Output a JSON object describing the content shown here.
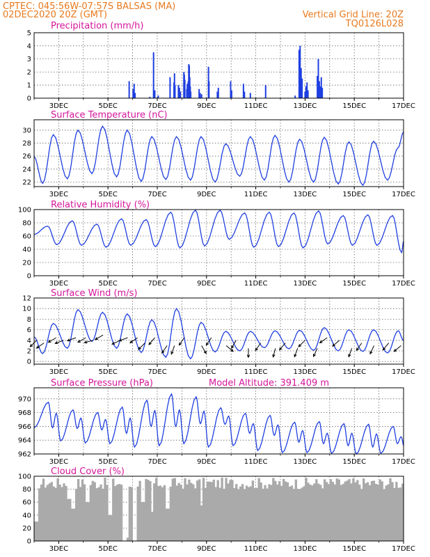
{
  "header": {
    "left_line1": "CPTEC:   045:56W-07:57S  BALSAS (MA)",
    "left_line2": "02DEC2020 20Z (GMT)",
    "right_line1": "Vertical Grid Line: 20Z",
    "right_line2": "TQ0126L028"
  },
  "colors": {
    "header": "#e87a1e",
    "titles": "#d4169a",
    "series": "#1f3fe0",
    "cloud": "#aaaaaa"
  },
  "chart_data": [
    {
      "id": "precip",
      "type": "bar",
      "title": "Precipitation (mm/h)",
      "unit_interval_hours": 1,
      "x_start": "02DEC2020 20Z",
      "x_end": "17DEC2020 20Z",
      "x_ticks": [
        "3DEC",
        "5DEC",
        "7DEC",
        "9DEC",
        "11DEC",
        "13DEC",
        "15DEC",
        "17DEC"
      ],
      "ylim": [
        0,
        5
      ],
      "y_ticks": [
        0,
        1,
        2,
        3,
        4,
        5
      ],
      "events": [
        {
          "day": 3.86,
          "value": 1.3
        },
        {
          "day": 4.02,
          "value": 0.7
        },
        {
          "day": 4.06,
          "value": 1.1
        },
        {
          "day": 4.1,
          "value": 0.4
        },
        {
          "day": 4.7,
          "value": 0.1
        },
        {
          "day": 4.85,
          "value": 3.5
        },
        {
          "day": 4.9,
          "value": 0.6
        },
        {
          "day": 5.04,
          "value": 0.2
        },
        {
          "day": 5.52,
          "value": 1.6
        },
        {
          "day": 5.68,
          "value": 1.2
        },
        {
          "day": 5.7,
          "value": 1.9
        },
        {
          "day": 5.72,
          "value": 1.0
        },
        {
          "day": 5.86,
          "value": 1.0
        },
        {
          "day": 5.9,
          "value": 0.8
        },
        {
          "day": 5.94,
          "value": 0.5
        },
        {
          "day": 6.08,
          "value": 2.0
        },
        {
          "day": 6.1,
          "value": 1.8
        },
        {
          "day": 6.12,
          "value": 1.4
        },
        {
          "day": 6.2,
          "value": 0.7
        },
        {
          "day": 6.22,
          "value": 1.1
        },
        {
          "day": 6.24,
          "value": 0.9
        },
        {
          "day": 6.26,
          "value": 1.3
        },
        {
          "day": 6.28,
          "value": 2.6
        },
        {
          "day": 6.3,
          "value": 2.5
        },
        {
          "day": 6.32,
          "value": 1.6
        },
        {
          "day": 6.34,
          "value": 0.9
        },
        {
          "day": 6.36,
          "value": 0.5
        },
        {
          "day": 6.7,
          "value": 0.7
        },
        {
          "day": 6.74,
          "value": 0.4
        },
        {
          "day": 6.8,
          "value": 0.3
        },
        {
          "day": 7.08,
          "value": 2.4
        },
        {
          "day": 7.1,
          "value": 1.3
        },
        {
          "day": 7.44,
          "value": 0.5
        },
        {
          "day": 7.48,
          "value": 0.8
        },
        {
          "day": 7.98,
          "value": 1.3
        },
        {
          "day": 8.02,
          "value": 0.6
        },
        {
          "day": 8.5,
          "value": 1.1
        },
        {
          "day": 8.54,
          "value": 0.5
        },
        {
          "day": 8.78,
          "value": 0.4
        },
        {
          "day": 9.4,
          "value": 1.0
        },
        {
          "day": 10.6,
          "value": 0.2
        },
        {
          "day": 10.76,
          "value": 3.7
        },
        {
          "day": 10.8,
          "value": 4.0
        },
        {
          "day": 10.84,
          "value": 2.3
        },
        {
          "day": 10.88,
          "value": 1.5
        },
        {
          "day": 11.0,
          "value": 0.5
        },
        {
          "day": 11.04,
          "value": 0.9
        },
        {
          "day": 11.08,
          "value": 1.2
        },
        {
          "day": 11.12,
          "value": 0.6
        },
        {
          "day": 11.5,
          "value": 1.7
        },
        {
          "day": 11.54,
          "value": 3.0
        },
        {
          "day": 11.58,
          "value": 1.3
        },
        {
          "day": 11.62,
          "value": 0.9
        },
        {
          "day": 11.66,
          "value": 1.6
        },
        {
          "day": 11.7,
          "value": 0.8
        }
      ]
    },
    {
      "id": "temp",
      "type": "line",
      "title": "Surface Temperature (nC)",
      "ylim": [
        21.3,
        31.6
      ],
      "y_ticks": [
        22,
        24,
        26,
        28,
        30,
        32
      ],
      "daily_min": [
        21.8,
        22.5,
        23.3,
        22.8,
        22.1,
        22.4,
        22.3,
        22.0,
        22.9,
        22.3,
        22.0,
        22.0,
        21.7,
        21.5,
        22.3
      ],
      "daily_max": [
        29.3,
        30.0,
        30.6,
        30.0,
        29.0,
        29.0,
        29.0,
        27.9,
        29.0,
        29.2,
        28.6,
        28.9,
        28.2,
        28.3,
        27.3
      ],
      "end_value": 29.7
    },
    {
      "id": "rh",
      "type": "line",
      "title": "Relative Humidity (%)",
      "ylim": [
        0,
        100
      ],
      "y_ticks": [
        0,
        20,
        40,
        60,
        80,
        100
      ],
      "daily_min": [
        47,
        46,
        43,
        46,
        44,
        42,
        45,
        55,
        43,
        44,
        42,
        48,
        46,
        46,
        35
      ],
      "daily_max": [
        75,
        83,
        78,
        86,
        85,
        96,
        99,
        99,
        95,
        96,
        95,
        98,
        91,
        92,
        91
      ],
      "end_value": 52
    },
    {
      "id": "wind",
      "type": "line",
      "title": "Surface Wind (m/s)",
      "ylim": [
        -0.5,
        12
      ],
      "y_ticks": [
        0,
        2,
        4,
        6,
        8,
        10,
        12
      ],
      "daily_min": [
        1.5,
        2.5,
        3.8,
        2.5,
        1.7,
        0.8,
        0.5,
        1.8,
        2.0,
        2.6,
        2.4,
        2.1,
        2.0,
        1.9,
        1.6
      ],
      "daily_max": [
        7.2,
        9.8,
        9.3,
        9.0,
        7.9,
        10.0,
        7.4,
        5.7,
        5.7,
        5.8,
        5.9,
        6.4,
        6.0,
        6.0,
        5.8
      ],
      "end_value": 4.0,
      "arrows": [
        {
          "day": 0.1,
          "speed": 4.0,
          "dir_deg": 225
        },
        {
          "day": 0.4,
          "speed": 3.5,
          "dir_deg": 235
        },
        {
          "day": 0.9,
          "speed": 4.5,
          "dir_deg": 240
        },
        {
          "day": 1.2,
          "speed": 4.0,
          "dir_deg": 250
        },
        {
          "day": 1.7,
          "speed": 4.5,
          "dir_deg": 250
        },
        {
          "day": 2.1,
          "speed": 4.5,
          "dir_deg": 240
        },
        {
          "day": 2.4,
          "speed": 4.0,
          "dir_deg": 255
        },
        {
          "day": 2.8,
          "speed": 5.0,
          "dir_deg": 240
        },
        {
          "day": 3.5,
          "speed": 4.0,
          "dir_deg": 245
        },
        {
          "day": 3.8,
          "speed": 4.5,
          "dir_deg": 250
        },
        {
          "day": 4.2,
          "speed": 4.5,
          "dir_deg": 235
        },
        {
          "day": 4.5,
          "speed": 3.5,
          "dir_deg": 225
        },
        {
          "day": 4.9,
          "speed": 4.5,
          "dir_deg": 220
        },
        {
          "day": 5.4,
          "speed": 3.0,
          "dir_deg": 215
        },
        {
          "day": 5.7,
          "speed": 3.0,
          "dir_deg": 200
        },
        {
          "day": 6.1,
          "speed": 4.5,
          "dir_deg": 215
        },
        {
          "day": 6.8,
          "speed": 3.0,
          "dir_deg": 150
        },
        {
          "day": 7.2,
          "speed": 4.5,
          "dir_deg": 215
        },
        {
          "day": 7.8,
          "speed": 3.0,
          "dir_deg": 130
        },
        {
          "day": 8.2,
          "speed": 4.0,
          "dir_deg": 210
        },
        {
          "day": 8.7,
          "speed": 2.5,
          "dir_deg": 180
        },
        {
          "day": 9.2,
          "speed": 3.5,
          "dir_deg": 215
        },
        {
          "day": 9.8,
          "speed": 2.5,
          "dir_deg": 195
        },
        {
          "day": 10.2,
          "speed": 3.5,
          "dir_deg": 220
        },
        {
          "day": 10.7,
          "speed": 2.5,
          "dir_deg": 200
        },
        {
          "day": 11.0,
          "speed": 4.0,
          "dir_deg": 225
        },
        {
          "day": 11.5,
          "speed": 2.5,
          "dir_deg": 205
        },
        {
          "day": 11.9,
          "speed": 4.5,
          "dir_deg": 235
        },
        {
          "day": 12.4,
          "speed": 4.0,
          "dir_deg": 230
        },
        {
          "day": 12.9,
          "speed": 2.5,
          "dir_deg": 200
        },
        {
          "day": 13.3,
          "speed": 3.5,
          "dir_deg": 215
        },
        {
          "day": 13.8,
          "speed": 3.0,
          "dir_deg": 205
        },
        {
          "day": 14.4,
          "speed": 3.5,
          "dir_deg": 220
        },
        {
          "day": 14.9,
          "speed": 3.0,
          "dir_deg": 230
        }
      ]
    },
    {
      "id": "pres",
      "type": "line",
      "title": "Surface Pressure (hPa)",
      "annotation": "Model Altitude: 391.409 m",
      "ylim": [
        962,
        971.6
      ],
      "y_ticks": [
        962,
        964,
        966,
        968,
        970
      ],
      "start_value": 965.8,
      "am_max": [
        969.5,
        968.4,
        968.0,
        968.8,
        969.8,
        970.7,
        970.3,
        968.7,
        967.9,
        967.6,
        966.6,
        966.7,
        966.4,
        966.3,
        966.0
      ],
      "am_min": [
        965.8,
        965.7,
        965.5,
        965.0,
        966.0,
        966.0,
        966.4,
        966.3,
        965.0,
        964.7,
        963.7,
        963.5,
        963.2,
        963.0,
        963.5
      ],
      "pm_max": [
        967.9,
        967.2,
        967.0,
        967.2,
        968.3,
        968.4,
        968.2,
        967.5,
        966.4,
        966.2,
        965.4,
        965.0,
        965.0,
        964.9,
        964.5
      ],
      "pm_min": [
        963.9,
        963.6,
        963.5,
        963.0,
        963.2,
        963.5,
        963.0,
        963.2,
        962.5,
        962.2,
        962.2,
        962.1,
        962.0,
        962.1,
        962.0
      ]
    },
    {
      "id": "cloud",
      "type": "bar",
      "title": "Cloud Cover (%)",
      "ylim": [
        0,
        100
      ],
      "y_ticks": [
        0,
        20,
        40,
        60,
        80,
        100
      ],
      "typical_range": [
        80,
        98
      ],
      "gaps": [
        {
          "day": 0.05,
          "value": 30
        },
        {
          "day": 1.35,
          "value": 65
        },
        {
          "day": 1.55,
          "value": 50
        },
        {
          "day": 2.15,
          "value": 60
        },
        {
          "day": 3.05,
          "value": 40
        },
        {
          "day": 3.65,
          "value": 0
        },
        {
          "day": 3.75,
          "value": 5
        },
        {
          "day": 4.05,
          "value": 0
        },
        {
          "day": 4.35,
          "value": 60
        },
        {
          "day": 4.75,
          "value": 45
        },
        {
          "day": 5.35,
          "value": 50
        },
        {
          "day": 6.75,
          "value": 55
        }
      ]
    }
  ]
}
